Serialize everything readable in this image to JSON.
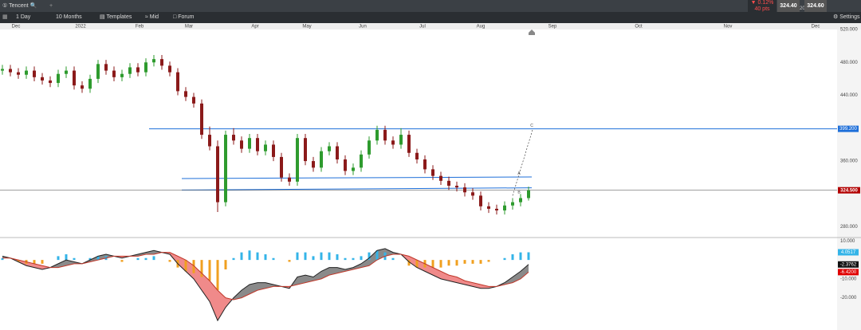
{
  "header": {
    "symbol": "Tencent",
    "change": "▼ 0.12%",
    "change_pts": "40 pts",
    "bid": "324.40",
    "spread": "20",
    "ask": "324.60",
    "settings": "Settings"
  },
  "toolbar": [
    "1 Day",
    "10 Months",
    "Templates",
    "Mid",
    "Forum"
  ],
  "chart_data": [
    {
      "type": "candlestick",
      "xlim": [
        -0.3,
        104.7
      ],
      "xticks": [
        {
          "value": 1.7,
          "label": "Dec"
        },
        {
          "value": 9.8,
          "label": "2022"
        },
        {
          "value": 17.2,
          "label": "Feb"
        },
        {
          "value": 23.4,
          "label": "Mar"
        },
        {
          "value": 31.7,
          "label": "Apr"
        },
        {
          "value": 38.2,
          "label": "May"
        },
        {
          "value": 45.2,
          "label": "Jun"
        },
        {
          "value": 52.7,
          "label": "Jul"
        },
        {
          "value": 60,
          "label": "Aug"
        },
        {
          "value": 69,
          "label": "Sep"
        },
        {
          "value": 79.8,
          "label": "Oct"
        },
        {
          "value": 91,
          "label": "Nov"
        },
        {
          "value": 102,
          "label": "Dec"
        }
      ],
      "ylim": [
        268,
        520
      ],
      "yticks": [
        {
          "value": 520,
          "label": "520.000"
        },
        {
          "value": 480,
          "label": "480.000"
        },
        {
          "value": 440,
          "label": "440.000"
        },
        {
          "value": 360,
          "label": "360.000"
        },
        {
          "value": 280,
          "label": "280.000"
        }
      ],
      "open": [
        470,
        472,
        468,
        465,
        470,
        462,
        458,
        455,
        466,
        470,
        452,
        448,
        460,
        478,
        470,
        462,
        466,
        474,
        468,
        480,
        484,
        476,
        468,
        445,
        438,
        430,
        392,
        378,
        310,
        392,
        385,
        375,
        388,
        372,
        380,
        365,
        340,
        335,
        388,
        360,
        352,
        372,
        378,
        362,
        348,
        352,
        368,
        385,
        398,
        385,
        380,
        392,
        370,
        362,
        350,
        342,
        336,
        330,
        328,
        322,
        318,
        305,
        302,
        300,
        306,
        310,
        315
      ],
      "high": [
        477,
        477,
        473,
        475,
        475,
        467,
        463,
        471,
        475,
        475,
        457,
        465,
        483,
        483,
        475,
        471,
        479,
        479,
        485,
        489,
        489,
        481,
        473,
        450,
        443,
        435,
        402,
        385,
        397,
        400,
        390,
        393,
        393,
        385,
        385,
        370,
        345,
        393,
        393,
        365,
        377,
        383,
        383,
        367,
        357,
        373,
        390,
        403,
        403,
        390,
        400,
        397,
        375,
        367,
        355,
        347,
        341,
        335,
        333,
        327,
        323,
        310,
        307,
        311,
        315,
        320,
        329
      ],
      "low": [
        465,
        463,
        460,
        460,
        457,
        453,
        450,
        450,
        461,
        447,
        443,
        443,
        455,
        465,
        457,
        457,
        461,
        463,
        463,
        475,
        471,
        463,
        440,
        433,
        425,
        387,
        373,
        298,
        305,
        380,
        370,
        370,
        367,
        367,
        360,
        335,
        330,
        330,
        355,
        347,
        347,
        367,
        357,
        343,
        343,
        347,
        363,
        380,
        380,
        375,
        375,
        365,
        357,
        345,
        337,
        331,
        325,
        323,
        317,
        313,
        300,
        297,
        295,
        295,
        301,
        305,
        312
      ],
      "close": [
        472,
        468,
        465,
        470,
        462,
        458,
        455,
        466,
        470,
        452,
        448,
        460,
        478,
        470,
        462,
        466,
        474,
        468,
        480,
        484,
        476,
        468,
        445,
        438,
        430,
        392,
        378,
        310,
        392,
        385,
        375,
        388,
        372,
        380,
        365,
        340,
        335,
        388,
        360,
        352,
        372,
        378,
        362,
        348,
        352,
        368,
        385,
        398,
        385,
        380,
        392,
        370,
        362,
        350,
        342,
        336,
        330,
        328,
        322,
        318,
        305,
        302,
        300,
        306,
        310,
        315,
        324.5
      ],
      "last_label": "324.500",
      "up_color": "#2e9b2e",
      "down_color": "#8b1a1a",
      "hline": {
        "value": 399.2,
        "label": "399.200",
        "from": 18.4,
        "color": "#1e6fd9"
      },
      "trend_lines": [
        {
          "from": [
            22.5,
            338.8
          ],
          "to": [
            66.4,
            340.7
          ]
        },
        {
          "from": [
            22.5,
            324.8
          ],
          "to": [
            66.4,
            327.5
          ]
        }
      ],
      "projection": {
        "from": [
          64,
          318
        ],
        "to": [
          66.5,
          398
        ]
      },
      "annotations": [
        {
          "text": "A",
          "x": 64.8,
          "y": 345
        },
        {
          "text": "B",
          "x": 64.8,
          "y": 322
        },
        {
          "text": "C",
          "x": 66.4,
          "y": 403
        }
      ]
    },
    {
      "type": "macd",
      "ylim": [
        -37,
        11
      ],
      "yticks": [
        {
          "value": 10,
          "label": "10.000"
        },
        {
          "value": -10,
          "label": "-10.000"
        },
        {
          "value": -20,
          "label": "-20.000"
        }
      ],
      "hist": [
        1,
        0,
        -1,
        -2,
        -2,
        -2,
        0,
        2,
        3,
        1,
        0,
        1,
        2,
        2,
        0,
        -1,
        0,
        1,
        1,
        2,
        0,
        -1,
        -4,
        -6,
        -7,
        -9,
        -11,
        -16,
        -5,
        1,
        4,
        5,
        4,
        3,
        1,
        0,
        -1,
        4,
        4,
        2,
        4,
        4,
        3,
        1,
        1,
        2,
        4,
        5,
        4,
        1,
        0,
        -3,
        -4,
        -4,
        -4,
        -4,
        -3,
        -3,
        -2,
        -2,
        -2,
        -1,
        0,
        1,
        3,
        4,
        4.0517
      ],
      "macd": [
        2,
        1,
        -1,
        -3,
        -4,
        -5,
        -4,
        -2,
        0,
        -1,
        -2,
        0,
        2,
        3,
        2,
        1,
        2,
        3,
        4,
        5,
        4,
        3,
        -2,
        -6,
        -10,
        -16,
        -22,
        -32,
        -25,
        -20,
        -16,
        -13,
        -12,
        -12,
        -13,
        -14,
        -15,
        -9,
        -8,
        -9,
        -6,
        -4,
        -4,
        -5,
        -4,
        -2,
        1,
        5,
        6,
        4,
        3,
        -1,
        -4,
        -6,
        -8,
        -10,
        -11,
        -12,
        -13,
        -14,
        -15,
        -15,
        -14,
        -12,
        -9,
        -6,
        -2.3762
      ],
      "signal": [
        1,
        1,
        0,
        -1,
        -2,
        -3,
        -4,
        -4,
        -3,
        -2,
        -2,
        -1,
        0,
        1,
        2,
        2,
        2,
        2,
        3,
        3,
        4,
        4,
        2,
        0,
        -3,
        -7,
        -11,
        -16,
        -20,
        -21,
        -20,
        -18,
        -16,
        -15,
        -14,
        -14,
        -14,
        -13,
        -12,
        -11,
        -10,
        -8,
        -7,
        -6,
        -5,
        -4,
        -3,
        0,
        2,
        3,
        3,
        2,
        0,
        -2,
        -4,
        -6,
        -8,
        -9,
        -11,
        -12,
        -13,
        -14,
        -14,
        -13,
        -12,
        -10,
        -6.42
      ],
      "last_labels": {
        "hist": "4.0517",
        "macd": "-2.3762",
        "signal": "-6.4200"
      },
      "hist_up_color": "#34b4e8",
      "hist_down_color": "#f0a020",
      "macd_color": "#222222",
      "signal_color": "#c0392b"
    }
  ]
}
